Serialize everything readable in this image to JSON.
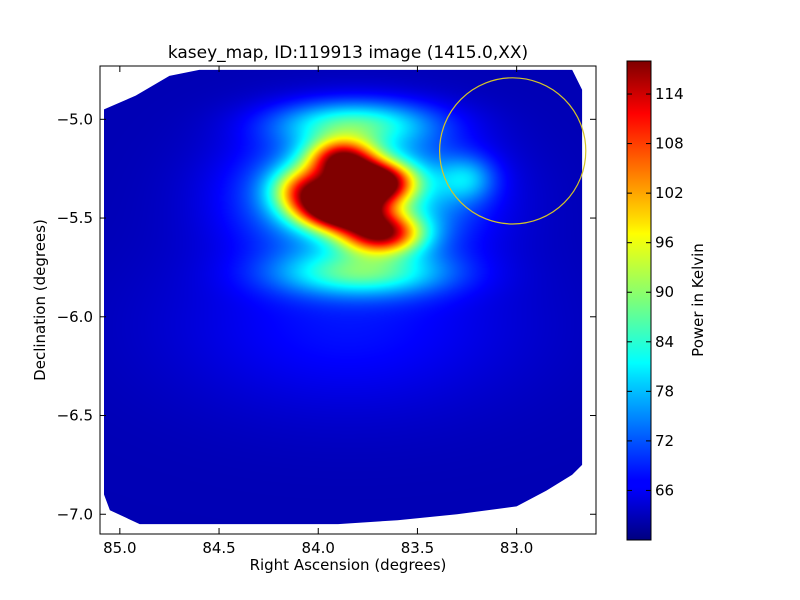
{
  "chart_data": {
    "type": "heatmap",
    "title": "kasey_map, ID:119913 image (1415.0,XX)",
    "xlabel": "Right Ascension (degrees)",
    "ylabel": "Declination (degrees)",
    "colorbar_label": "Power in Kelvin",
    "colormap": "jet",
    "xlim": [
      85.1,
      82.6
    ],
    "ylim": [
      -7.1,
      -4.73
    ],
    "x_ticks": [
      85.0,
      84.5,
      84.0,
      83.5,
      83.0
    ],
    "x_tick_labels": [
      "85.0",
      "84.5",
      "84.0",
      "83.5",
      "83.0"
    ],
    "y_ticks": [
      -5.0,
      -5.5,
      -6.0,
      -6.5,
      -7.0
    ],
    "y_tick_labels": [
      "−5.0",
      "−5.5",
      "−6.0",
      "−6.5",
      "−7.0"
    ],
    "colorbar_range": [
      60,
      118
    ],
    "colorbar_ticks": [
      66,
      72,
      78,
      84,
      90,
      96,
      102,
      108,
      114
    ],
    "colorbar_tick_labels": [
      "66",
      "72",
      "78",
      "84",
      "90",
      "96",
      "102",
      "108",
      "114"
    ],
    "background_level": 63,
    "sources": [
      {
        "ra": 83.72,
        "dec": -5.32,
        "peak": 52,
        "sigma_ra": 0.13,
        "sigma_dec": 0.07
      },
      {
        "ra": 83.88,
        "dec": -5.46,
        "peak": 50,
        "sigma_ra": 0.14,
        "sigma_dec": 0.07
      },
      {
        "ra": 83.88,
        "dec": -5.2,
        "peak": 38,
        "sigma_ra": 0.12,
        "sigma_dec": 0.07
      },
      {
        "ra": 83.68,
        "dec": -5.58,
        "peak": 40,
        "sigma_ra": 0.14,
        "sigma_dec": 0.07
      },
      {
        "ra": 84.05,
        "dec": -5.36,
        "peak": 30,
        "sigma_ra": 0.12,
        "sigma_dec": 0.08
      },
      {
        "ra": 83.8,
        "dec": -5.38,
        "peak": 22,
        "sigma_ra": 0.38,
        "sigma_dec": 0.22
      },
      {
        "ra": 83.82,
        "dec": -5.02,
        "peak": 18,
        "sigma_ra": 0.28,
        "sigma_dec": 0.08
      },
      {
        "ra": 83.78,
        "dec": -5.78,
        "peak": 18,
        "sigma_ra": 0.3,
        "sigma_dec": 0.08
      },
      {
        "ra": 83.25,
        "dec": -5.3,
        "peak": 10,
        "sigma_ra": 0.1,
        "sigma_dec": 0.08
      },
      {
        "ra": 83.85,
        "dec": -6.05,
        "peak": 5,
        "sigma_ra": 0.6,
        "sigma_dec": 0.3
      }
    ],
    "circle": {
      "ra": 83.02,
      "dec": -5.16,
      "radius_deg": 0.37,
      "color": "#d4c42a"
    },
    "coverage_polygon": [
      [
        84.92,
        -4.88
      ],
      [
        84.75,
        -4.78
      ],
      [
        84.6,
        -4.75
      ],
      [
        82.72,
        -4.75
      ],
      [
        82.67,
        -4.85
      ],
      [
        82.67,
        -6.75
      ],
      [
        82.72,
        -6.8
      ],
      [
        82.85,
        -6.88
      ],
      [
        83.0,
        -6.96
      ],
      [
        83.3,
        -7.0
      ],
      [
        83.6,
        -7.03
      ],
      [
        83.9,
        -7.05
      ],
      [
        84.9,
        -7.05
      ],
      [
        85.05,
        -6.98
      ],
      [
        85.08,
        -6.9
      ],
      [
        85.08,
        -4.95
      ]
    ]
  }
}
